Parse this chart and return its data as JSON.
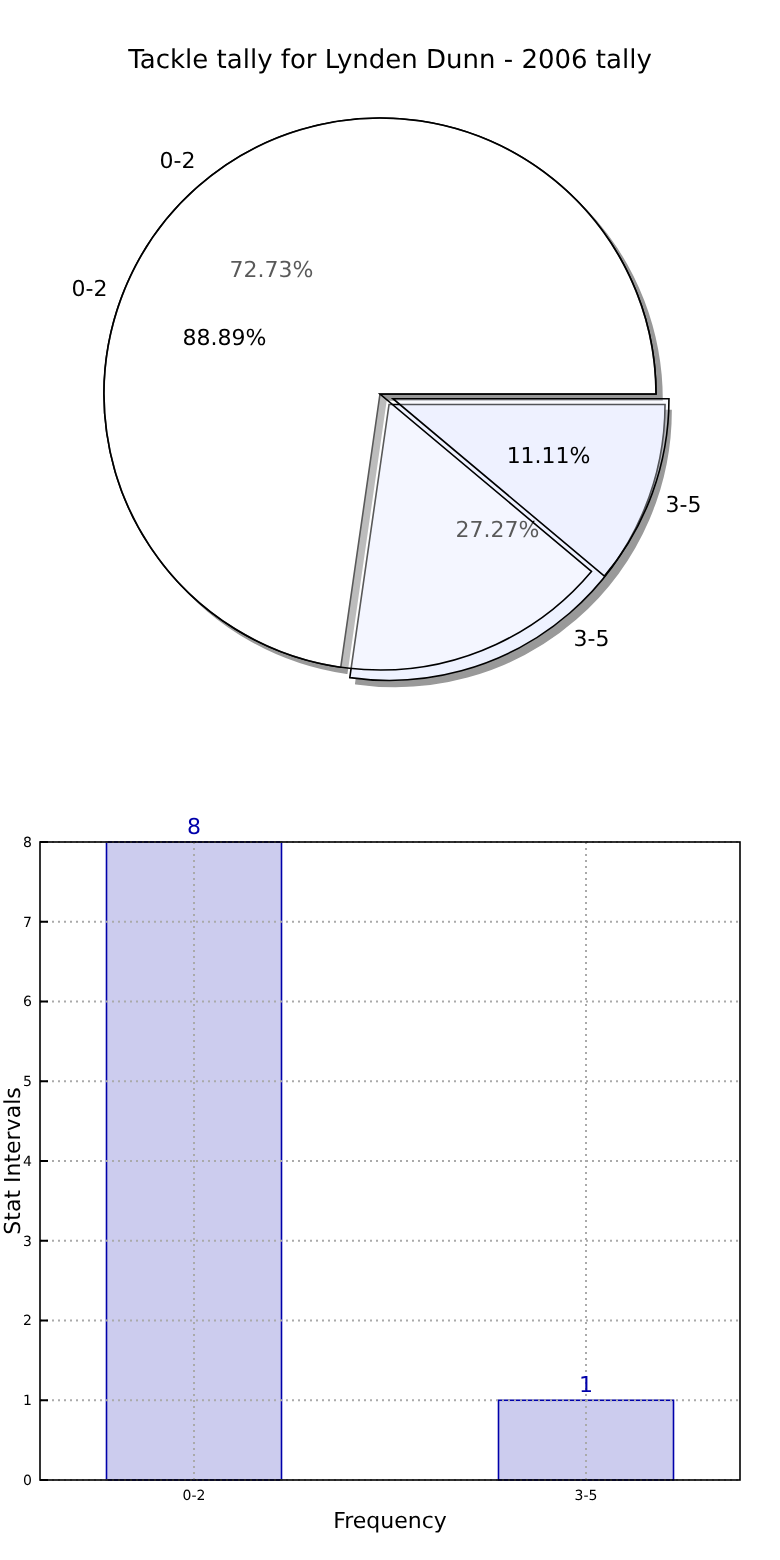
{
  "chart_data": [
    {
      "type": "pie",
      "title": "Tackle tally for Lynden Dunn - 2006 tally",
      "categories": [
        "0-2",
        "3-5"
      ],
      "values": [
        72.73,
        27.27
      ],
      "colors": [
        "#ffffff",
        "#eef2ff"
      ],
      "value_labels": [
        "72.73%",
        "27.27%"
      ]
    },
    {
      "type": "pie",
      "categories": [
        "0-2",
        "3-5"
      ],
      "values": [
        88.89,
        11.11
      ],
      "colors": [
        "#ffffff",
        "#eef2ff"
      ],
      "value_labels": [
        "88.89%",
        "11.11%"
      ]
    },
    {
      "type": "bar",
      "categories": [
        "0-2",
        "3-5"
      ],
      "values": [
        8,
        1
      ],
      "color": "#ccccee",
      "xlabel": "Frequency",
      "ylabel": "Stat Intervals",
      "ylim": [
        0,
        8
      ],
      "yticks": [
        0,
        1,
        2,
        3,
        4,
        5,
        6,
        7,
        8
      ],
      "grid": true,
      "data_labels": true
    }
  ]
}
